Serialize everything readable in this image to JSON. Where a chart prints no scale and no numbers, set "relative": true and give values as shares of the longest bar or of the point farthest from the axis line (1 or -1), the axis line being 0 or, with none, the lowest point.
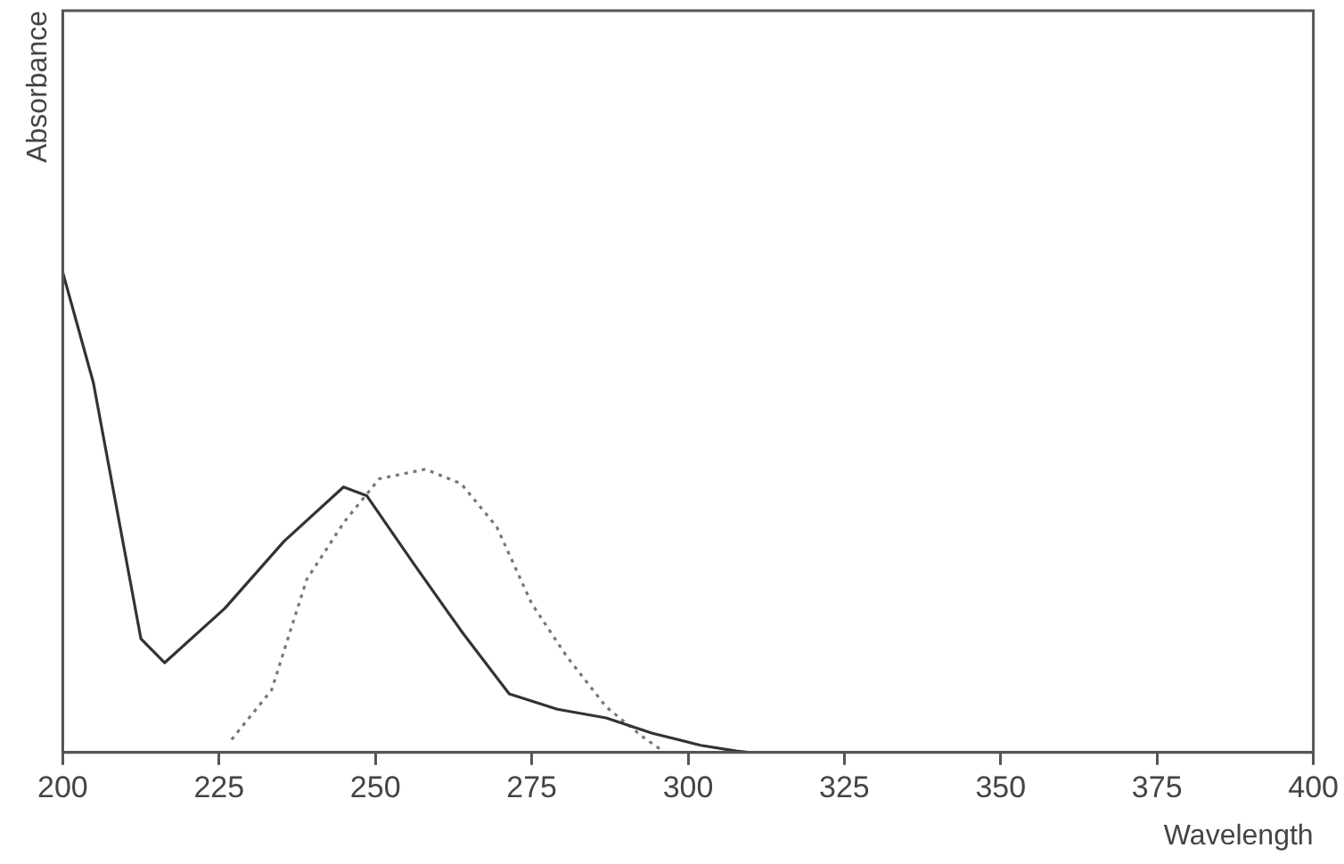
{
  "chart_data": {
    "type": "line",
    "xlabel": "Wavelength",
    "ylabel": "Absorbance",
    "relative": true,
    "xlim": [
      200,
      400
    ],
    "xticks": [
      200,
      225,
      250,
      275,
      300,
      325,
      350,
      375,
      400
    ],
    "grid": false,
    "legend": false,
    "marker": "none",
    "series": [
      {
        "color": "#333333",
        "line_style": "solid",
        "x": [
          200,
          204.9,
          212.5,
          216.3,
          225.9,
          235.4,
          244.9,
          248.6,
          256.3,
          263.9,
          271.4,
          279.1,
          286.9,
          294.3,
          302,
          307.7,
          310
        ],
        "values": [
          1.0,
          0.77,
          0.237,
          0.187,
          0.3,
          0.44,
          0.553,
          0.535,
          0.39,
          0.25,
          0.122,
          0.09,
          0.072,
          0.04,
          0.015,
          0.003,
          0
        ]
      },
      {
        "color": "#777777",
        "line_style": "dotted",
        "x": [
          227,
          233.4,
          239,
          245,
          250.6,
          258,
          263.7,
          269.4,
          275,
          280.6,
          286.9,
          292.6,
          296.3
        ],
        "values": [
          0.027,
          0.13,
          0.36,
          0.48,
          0.57,
          0.59,
          0.56,
          0.47,
          0.31,
          0.2,
          0.095,
          0.034,
          0
        ]
      }
    ]
  }
}
